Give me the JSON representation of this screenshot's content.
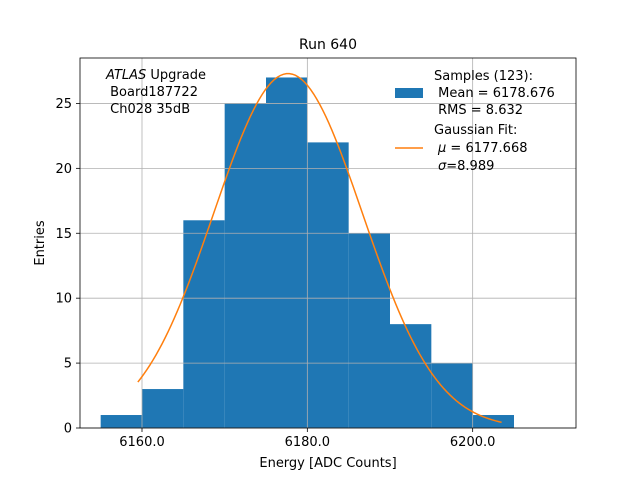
{
  "chart_data": {
    "type": "bar",
    "title": "Run 640",
    "xlabel": "Energy [ADC Counts]",
    "ylabel": "Entries",
    "xlim": [
      6152.5,
      6212.5
    ],
    "ylim": [
      0,
      28.5
    ],
    "grid": true,
    "bins": [
      {
        "left": 6155.0,
        "right": 6160.0,
        "count": 1
      },
      {
        "left": 6160.0,
        "right": 6165.0,
        "count": 3
      },
      {
        "left": 6165.0,
        "right": 6170.0,
        "count": 16
      },
      {
        "left": 6170.0,
        "right": 6175.0,
        "count": 25
      },
      {
        "left": 6175.0,
        "right": 6180.0,
        "count": 27
      },
      {
        "left": 6180.0,
        "right": 6185.0,
        "count": 22
      },
      {
        "left": 6185.0,
        "right": 6190.0,
        "count": 15
      },
      {
        "left": 6190.0,
        "right": 6195.0,
        "count": 8
      },
      {
        "left": 6195.0,
        "right": 6200.0,
        "count": 5
      },
      {
        "left": 6200.0,
        "right": 6205.0,
        "count": 1
      }
    ],
    "fit": {
      "amplitude": 27.3,
      "mean": 6177.668,
      "sigma": 8.989,
      "x_range": [
        6159.5,
        6203.5
      ]
    },
    "x_ticks": [
      {
        "value": 6160.0,
        "label": "6160.0"
      },
      {
        "value": 6180.0,
        "label": "6180.0"
      },
      {
        "value": 6200.0,
        "label": "6200.0"
      }
    ],
    "y_ticks": [
      {
        "value": 0,
        "label": "0"
      },
      {
        "value": 5,
        "label": "5"
      },
      {
        "value": 10,
        "label": "10"
      },
      {
        "value": 15,
        "label": "15"
      },
      {
        "value": 20,
        "label": "20"
      },
      {
        "value": 25,
        "label": "25"
      }
    ],
    "annotation": {
      "italic": "ATLAS",
      "rest": " Upgrade",
      "line2": " Board187722",
      "line3": " Ch028 35dB"
    },
    "legend": {
      "position": "top-right",
      "hist_lines": [
        "Samples (123):",
        " Mean = 6178.676",
        " RMS = 8.632"
      ],
      "fit_lines": [
        "Gaussian Fit:",
        "6177.668",
        "8.989"
      ],
      "fit_mu_label": " = ",
      "fit_sigma_label": "="
    },
    "colors": {
      "bars": "#1f77b4",
      "fit": "#ff7f0e",
      "grid": "#b0b0b0"
    }
  }
}
